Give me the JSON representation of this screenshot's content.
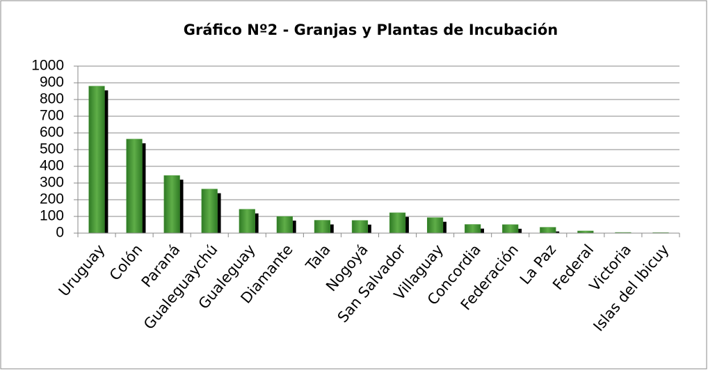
{
  "chart_data": {
    "type": "bar",
    "title": "Gráfico Nº2 - Granjas y  Plantas de Incubación",
    "categories": [
      "Uruguay",
      "Colón",
      "Paraná",
      "Gualeguaychú",
      "Gualeguay",
      "Diamante",
      "Tala",
      "Nogoyá",
      "San Salvador",
      "Villaguay",
      "Concordia",
      "Federación",
      "La Paz",
      "Federal",
      "Victoria",
      "Islas del Ibicuy"
    ],
    "values": [
      880,
      563,
      345,
      264,
      143,
      100,
      77,
      76,
      122,
      93,
      52,
      51,
      35,
      13,
      4,
      3
    ],
    "color": "#4a9a3a",
    "ylim": [
      0,
      1000
    ],
    "yticks": [
      0,
      100,
      200,
      300,
      400,
      500,
      600,
      700,
      800,
      900,
      1000
    ],
    "grid": true
  }
}
